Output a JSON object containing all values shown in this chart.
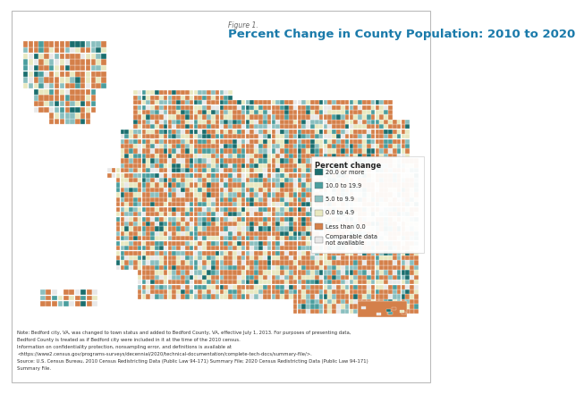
{
  "title_label": "Figure 1.",
  "title_main": "Percent Change in County Population: 2010 to 2020",
  "title_color": "#1a7aaa",
  "title_label_color": "#666666",
  "legend_title": "Percent change",
  "legend_items": [
    {
      "label": "20.0 or more",
      "color": "#1a6e6e"
    },
    {
      "label": "10.0 to 19.9",
      "color": "#4a9e9e"
    },
    {
      "label": "5.0 to 9.9",
      "color": "#8abfbf"
    },
    {
      "label": "0.0 to 4.9",
      "color": "#e8e8c0"
    },
    {
      "label": "Less than 0.0",
      "color": "#d4804a"
    },
    {
      "label": "Comparable data\nnot available",
      "color": "#e8e8e8"
    }
  ],
  "note_text1": "Note: Bedford city, VA, was changed to town status and added to Bedford County, VA, effective July 1, 2013. For purposes of presenting data,",
  "note_text2": "Bedford County is treated as if Bedford city were included in it at the time of the 2010 census.",
  "note_text3": "Information on confidentiality protection, nonsampling error, and definitions is available at",
  "note_text4": "<https://www2.census.gov/programs-surveys/decennial/2020/technical-documentation/complete-tech-docs/summary-file/>.",
  "note_text5": "Source: U.S. Census Bureau, 2010 Census Redistricting Data (Public Law 94-171) Summary File; 2020 Census Redistricting Data (Public Law 94-171)",
  "note_text6": "Summary File.",
  "bg_color": "#ffffff",
  "border_color": "#bbbbbb",
  "map_bg": "#ffffff",
  "colors": [
    "#1a6e6e",
    "#4a9e9e",
    "#8abfbf",
    "#e8e8c0",
    "#d4804a",
    "#e8e8e8"
  ],
  "weights": [
    0.07,
    0.11,
    0.14,
    0.18,
    0.42,
    0.08
  ]
}
